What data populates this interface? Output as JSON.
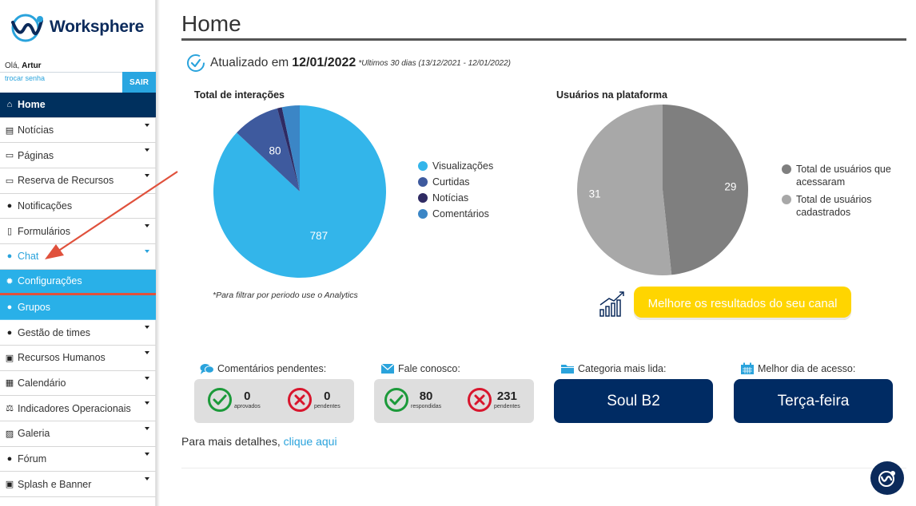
{
  "brand": {
    "name": "Worksphere"
  },
  "user": {
    "greeting": "Olá,",
    "name": "Artur",
    "change_password": "trocar senha",
    "logout": "SAIR"
  },
  "menu": [
    {
      "label": "Home",
      "icon": "home-icon",
      "glyph": "⌂",
      "caret": false
    },
    {
      "label": "Notícias",
      "icon": "newspaper-icon",
      "glyph": "▤",
      "caret": true
    },
    {
      "label": "Páginas",
      "icon": "window-icon",
      "glyph": "▭",
      "caret": true
    },
    {
      "label": "Reserva de Recursos",
      "icon": "laptop-icon",
      "glyph": "▭",
      "caret": true
    },
    {
      "label": "Notificações",
      "icon": "info-icon",
      "glyph": "●",
      "caret": false
    },
    {
      "label": "Formulários",
      "icon": "file-icon",
      "glyph": "▯",
      "caret": true
    },
    {
      "label": "Chat",
      "icon": "comments-icon",
      "glyph": "●",
      "caret": true
    },
    {
      "label": "Configurações",
      "icon": "gear-icon",
      "glyph": "✹",
      "caret": false
    },
    {
      "label": "Grupos",
      "icon": "users-icon",
      "glyph": "●",
      "caret": false
    },
    {
      "label": "Gestão de times",
      "icon": "team-icon",
      "glyph": "●",
      "caret": true
    },
    {
      "label": "Recursos Humanos",
      "icon": "id-badge-icon",
      "glyph": "▣",
      "caret": true
    },
    {
      "label": "Calendário",
      "icon": "calendar-icon",
      "glyph": "▦",
      "caret": true
    },
    {
      "label": "Indicadores Operacionais",
      "icon": "balance-scale-icon",
      "glyph": "⚖",
      "caret": true
    },
    {
      "label": "Galeria",
      "icon": "image-icon",
      "glyph": "▨",
      "caret": true
    },
    {
      "label": "Fórum",
      "icon": "question-icon",
      "glyph": "●",
      "caret": true
    },
    {
      "label": "Splash e Banner",
      "icon": "picture-frame-icon",
      "glyph": "▣",
      "caret": true
    }
  ],
  "page": {
    "title": "Home"
  },
  "updated": {
    "prefix": "Atualizado em",
    "date": "12/01/2022",
    "range": "*Ultimos 30 dias (13/12/2021 - 12/01/2022)"
  },
  "chart_data": [
    {
      "type": "pie",
      "title": "Total de interações",
      "categories": [
        "Visualizações",
        "Curtidas",
        "Notícias",
        "Comentários"
      ],
      "values": [
        787,
        80,
        8,
        30
      ],
      "data_labels": [
        "787",
        "80",
        "",
        ""
      ],
      "colors": [
        "#33b5ea",
        "#3e5a9e",
        "#2f2b63",
        "#3b86c6"
      ],
      "legend": "right"
    },
    {
      "type": "pie",
      "title": "Usuários na plataforma",
      "categories": [
        "Total de usuários que acessaram",
        "Total de usuários cadastrados"
      ],
      "values": [
        29,
        31
      ],
      "data_labels": [
        "29",
        "31"
      ],
      "colors": [
        "#7f7f7f",
        "#a8a8a8"
      ],
      "legend": "right"
    }
  ],
  "note": "*Para filtrar por periodo use o Analytics",
  "cta": {
    "label": "Melhore os resultados do seu canal"
  },
  "stats": {
    "comments": {
      "title": "Comentários pendentes:",
      "approved_value": "0",
      "approved_label": "aprovados",
      "pending_value": "0",
      "pending_label": "pendentes"
    },
    "contact": {
      "title": "Fale conosco:",
      "answered_value": "80",
      "answered_label": "respondidas",
      "pending_value": "231",
      "pending_label": "pendentes"
    },
    "category": {
      "title": "Categoria mais lida:",
      "value": "Soul B2"
    },
    "best_day": {
      "title": "Melhor dia de acesso:",
      "value": "Terça-feira"
    }
  },
  "details": {
    "text": "Para mais detalhes,",
    "link": "clique aqui"
  },
  "colors": {
    "navy": "#00305e",
    "accent": "#29b0e8",
    "cta": "#ffd500"
  }
}
